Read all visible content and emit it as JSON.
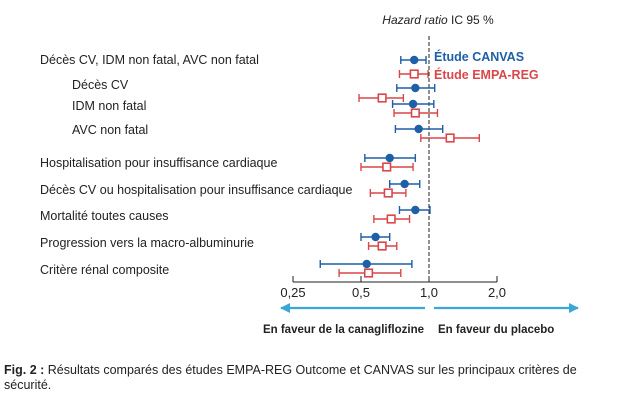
{
  "chart_data": {
    "type": "forest",
    "title": "Hazard ratio IC 95 %",
    "x_scale": "log",
    "xlim": [
      0.25,
      2.0
    ],
    "x_ticks": [
      0.25,
      0.5,
      1.0,
      2.0
    ],
    "x_tick_labels": [
      "0,25",
      "0,5",
      "1,0",
      "2,0"
    ],
    "reference_line": 1.0,
    "direction_left": "En faveur de la canagliflozine",
    "direction_right": "En faveur du placebo",
    "legend": {
      "position": "top-right",
      "entries": [
        {
          "key": "canvas",
          "label": "Étude CANVAS"
        },
        {
          "key": "empa",
          "label": "Étude EMPA-REG"
        }
      ]
    },
    "series": [
      {
        "key": "canvas",
        "name": "Étude CANVAS",
        "color": "#1f5fa6",
        "marker": "filled-circle"
      },
      {
        "key": "empa",
        "name": "Étude EMPA-REG",
        "color": "#d9474b",
        "marker": "open-square"
      }
    ],
    "rows": [
      {
        "label": "Décès CV, IDM non fatal, AVC non fatal",
        "indent": false,
        "group": 1,
        "canvas": {
          "hr": 0.86,
          "lo": 0.75,
          "hi": 0.97
        },
        "empa": {
          "hr": 0.86,
          "lo": 0.74,
          "hi": 0.99
        }
      },
      {
        "label": "Décès CV",
        "indent": true,
        "group": 1,
        "canvas": {
          "hr": 0.87,
          "lo": 0.72,
          "hi": 1.06
        },
        "empa": null
      },
      {
        "label": "",
        "indent": true,
        "group": 1,
        "canvas": null,
        "empa": {
          "hr": 0.62,
          "lo": 0.49,
          "hi": 0.77
        }
      },
      {
        "label": "IDM non fatal",
        "indent": true,
        "group": 1,
        "canvas": {
          "hr": 0.85,
          "lo": 0.69,
          "hi": 1.05
        },
        "empa": {
          "hr": 0.87,
          "lo": 0.7,
          "hi": 1.09
        }
      },
      {
        "label": "AVC non fatal",
        "indent": true,
        "group": 1,
        "canvas": {
          "hr": 0.9,
          "lo": 0.71,
          "hi": 1.15
        },
        "empa": {
          "hr": 1.24,
          "lo": 0.92,
          "hi": 1.67
        }
      },
      {
        "label": "Hospitalisation pour insuffisance cardiaque",
        "indent": false,
        "group": 2,
        "canvas": {
          "hr": 0.67,
          "lo": 0.52,
          "hi": 0.87
        },
        "empa": {
          "hr": 0.65,
          "lo": 0.5,
          "hi": 0.85
        }
      },
      {
        "label": "Décès CV ou hospitalisation pour insuffisance cardiaque",
        "indent": false,
        "group": 3,
        "canvas": {
          "hr": 0.78,
          "lo": 0.67,
          "hi": 0.91
        },
        "empa": {
          "hr": 0.66,
          "lo": 0.55,
          "hi": 0.79
        }
      },
      {
        "label": "Mortalité toutes causes",
        "indent": false,
        "group": 4,
        "canvas": {
          "hr": 0.87,
          "lo": 0.74,
          "hi": 1.01
        },
        "empa": {
          "hr": 0.68,
          "lo": 0.57,
          "hi": 0.82
        }
      },
      {
        "label": "Progression vers la macro-albuminurie",
        "indent": false,
        "group": 5,
        "canvas": {
          "hr": 0.58,
          "lo": 0.5,
          "hi": 0.67
        },
        "empa": {
          "hr": 0.62,
          "lo": 0.54,
          "hi": 0.72
        }
      },
      {
        "label": "Critère rénal composite",
        "indent": false,
        "group": 6,
        "canvas": {
          "hr": 0.53,
          "lo": 0.33,
          "hi": 0.84
        },
        "empa": {
          "hr": 0.54,
          "lo": 0.4,
          "hi": 0.75
        }
      }
    ]
  },
  "caption": {
    "label": "Fig. 2 :",
    "text": "Résultats comparés des études EMPA-REG Outcome et CANVAS sur les principaux critères de sécurité."
  }
}
